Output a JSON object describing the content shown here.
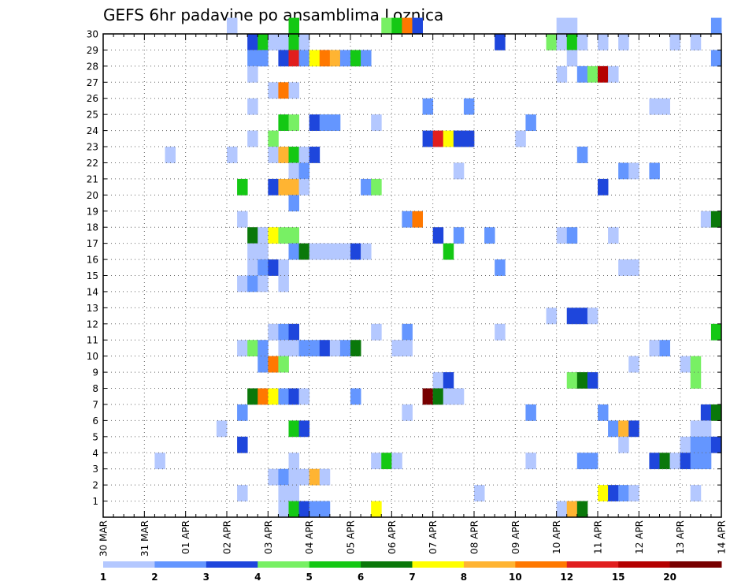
{
  "chart_data": {
    "type": "heatmap",
    "title": "GEFS 6hr padavine po ansamblima Loznica",
    "xlabel": "",
    "ylabel": "",
    "x_tick_labels": [
      "30 MAR",
      "31 MAR",
      "01 APR",
      "02 APR",
      "03 APR",
      "04 APR",
      "05 APR",
      "06 APR",
      "07 APR",
      "08 APR",
      "09 APR",
      "10 APR",
      "11 APR",
      "12 APR",
      "13 APR",
      "14 APR"
    ],
    "x_range_steps": [
      0,
      60
    ],
    "y_tick_labels": [
      "1",
      "2",
      "3",
      "4",
      "5",
      "6",
      "7",
      "8",
      "9",
      "10",
      "11",
      "12",
      "13",
      "14",
      "15",
      "16",
      "17",
      "18",
      "19",
      "20",
      "21",
      "22",
      "23",
      "24",
      "25",
      "26",
      "27",
      "28",
      "29",
      "30"
    ],
    "y_range": [
      0,
      30
    ],
    "grid": true,
    "colorbar": {
      "position": "bottom",
      "labels": [
        "1",
        "2",
        "3",
        "4",
        "5",
        "6",
        "7",
        "8",
        "10",
        "12",
        "15",
        "20"
      ],
      "colors": [
        "#b4c8ff",
        "#6496ff",
        "#1e46dc",
        "#78f064",
        "#14c814",
        "#0a780a",
        "#ffff00",
        "#ffb432",
        "#ff7800",
        "#e11e1e",
        "#b40000",
        "#780000"
      ]
    },
    "cells": [
      [
        12,
        30,
        0
      ],
      [
        18,
        30,
        4
      ],
      [
        27,
        30,
        3
      ],
      [
        28,
        30,
        4
      ],
      [
        29,
        30,
        8
      ],
      [
        30,
        30,
        2
      ],
      [
        44,
        30,
        0
      ],
      [
        45,
        30,
        0
      ],
      [
        59,
        30,
        1
      ],
      [
        14,
        29,
        2
      ],
      [
        15,
        29,
        4
      ],
      [
        16,
        29,
        0
      ],
      [
        17,
        29,
        0
      ],
      [
        18,
        29,
        4
      ],
      [
        19,
        29,
        0
      ],
      [
        38,
        29,
        2
      ],
      [
        43,
        29,
        3
      ],
      [
        44,
        29,
        0
      ],
      [
        45,
        29,
        4
      ],
      [
        46,
        29,
        0
      ],
      [
        48,
        29,
        0
      ],
      [
        50,
        29,
        0
      ],
      [
        55,
        29,
        0
      ],
      [
        57,
        29,
        0
      ],
      [
        14,
        28,
        1
      ],
      [
        15,
        28,
        1
      ],
      [
        17,
        28,
        2
      ],
      [
        18,
        28,
        9
      ],
      [
        19,
        28,
        1
      ],
      [
        20,
        28,
        6
      ],
      [
        21,
        28,
        8
      ],
      [
        22,
        28,
        7
      ],
      [
        23,
        28,
        1
      ],
      [
        24,
        28,
        4
      ],
      [
        25,
        28,
        1
      ],
      [
        45,
        28,
        0
      ],
      [
        59,
        28,
        1
      ],
      [
        14,
        27,
        0
      ],
      [
        44,
        27,
        0
      ],
      [
        46,
        27,
        1
      ],
      [
        47,
        27,
        3
      ],
      [
        48,
        27,
        10
      ],
      [
        49,
        27,
        0
      ],
      [
        16,
        26,
        0
      ],
      [
        17,
        26,
        8
      ],
      [
        18,
        26,
        0
      ],
      [
        14,
        25,
        0
      ],
      [
        31,
        25,
        1
      ],
      [
        35,
        25,
        1
      ],
      [
        53,
        25,
        0
      ],
      [
        54,
        25,
        0
      ],
      [
        17,
        24,
        4
      ],
      [
        18,
        24,
        3
      ],
      [
        20,
        24,
        2
      ],
      [
        21,
        24,
        1
      ],
      [
        22,
        24,
        1
      ],
      [
        26,
        24,
        0
      ],
      [
        41,
        24,
        1
      ],
      [
        14,
        23,
        0
      ],
      [
        16,
        23,
        3
      ],
      [
        31,
        23,
        2
      ],
      [
        32,
        23,
        9
      ],
      [
        33,
        23,
        6
      ],
      [
        34,
        23,
        2
      ],
      [
        35,
        23,
        2
      ],
      [
        40,
        23,
        0
      ],
      [
        6,
        22,
        0
      ],
      [
        12,
        22,
        0
      ],
      [
        16,
        22,
        0
      ],
      [
        17,
        22,
        7
      ],
      [
        18,
        22,
        4
      ],
      [
        19,
        22,
        0
      ],
      [
        20,
        22,
        2
      ],
      [
        46,
        22,
        1
      ],
      [
        18,
        21,
        0
      ],
      [
        19,
        21,
        1
      ],
      [
        34,
        21,
        0
      ],
      [
        50,
        21,
        1
      ],
      [
        51,
        21,
        0
      ],
      [
        53,
        21,
        1
      ],
      [
        13,
        20,
        4
      ],
      [
        16,
        20,
        2
      ],
      [
        17,
        20,
        7
      ],
      [
        18,
        20,
        7
      ],
      [
        19,
        20,
        0
      ],
      [
        25,
        20,
        1
      ],
      [
        26,
        20,
        3
      ],
      [
        48,
        20,
        2
      ],
      [
        18,
        19,
        1
      ],
      [
        13,
        18,
        0
      ],
      [
        29,
        18,
        1
      ],
      [
        30,
        18,
        8
      ],
      [
        58,
        18,
        0
      ],
      [
        59,
        18,
        5
      ],
      [
        14,
        17,
        5
      ],
      [
        15,
        17,
        0
      ],
      [
        16,
        17,
        6
      ],
      [
        17,
        17,
        3
      ],
      [
        18,
        17,
        3
      ],
      [
        32,
        17,
        2
      ],
      [
        34,
        17,
        1
      ],
      [
        37,
        17,
        1
      ],
      [
        44,
        17,
        0
      ],
      [
        45,
        17,
        1
      ],
      [
        49,
        17,
        0
      ],
      [
        14,
        16,
        0
      ],
      [
        15,
        16,
        0
      ],
      [
        18,
        16,
        1
      ],
      [
        19,
        16,
        5
      ],
      [
        20,
        16,
        0
      ],
      [
        21,
        16,
        0
      ],
      [
        22,
        16,
        0
      ],
      [
        23,
        16,
        0
      ],
      [
        24,
        16,
        2
      ],
      [
        25,
        16,
        0
      ],
      [
        33,
        16,
        4
      ],
      [
        14,
        15,
        0
      ],
      [
        15,
        15,
        1
      ],
      [
        16,
        15,
        2
      ],
      [
        17,
        15,
        0
      ],
      [
        38,
        15,
        1
      ],
      [
        50,
        15,
        0
      ],
      [
        51,
        15,
        0
      ],
      [
        13,
        14,
        0
      ],
      [
        14,
        14,
        1
      ],
      [
        15,
        14,
        0
      ],
      [
        17,
        14,
        0
      ],
      [
        43,
        12,
        0
      ],
      [
        45,
        12,
        2
      ],
      [
        46,
        12,
        2
      ],
      [
        47,
        12,
        0
      ],
      [
        16,
        11,
        0
      ],
      [
        17,
        11,
        1
      ],
      [
        18,
        11,
        2
      ],
      [
        26,
        11,
        0
      ],
      [
        29,
        11,
        1
      ],
      [
        38,
        11,
        0
      ],
      [
        59,
        11,
        4
      ],
      [
        13,
        10,
        0
      ],
      [
        14,
        10,
        3
      ],
      [
        15,
        10,
        1
      ],
      [
        17,
        10,
        0
      ],
      [
        18,
        10,
        0
      ],
      [
        19,
        10,
        1
      ],
      [
        20,
        10,
        1
      ],
      [
        21,
        10,
        2
      ],
      [
        22,
        10,
        0
      ],
      [
        23,
        10,
        1
      ],
      [
        24,
        10,
        5
      ],
      [
        28,
        10,
        0
      ],
      [
        29,
        10,
        0
      ],
      [
        53,
        10,
        0
      ],
      [
        54,
        10,
        1
      ],
      [
        15,
        9,
        1
      ],
      [
        16,
        9,
        8
      ],
      [
        17,
        9,
        3
      ],
      [
        51,
        9,
        0
      ],
      [
        56,
        9,
        0
      ],
      [
        57,
        9,
        3
      ],
      [
        32,
        8,
        0
      ],
      [
        33,
        8,
        2
      ],
      [
        45,
        8,
        3
      ],
      [
        46,
        8,
        5
      ],
      [
        47,
        8,
        2
      ],
      [
        57,
        8,
        3
      ],
      [
        14,
        7,
        5
      ],
      [
        15,
        7,
        8
      ],
      [
        16,
        7,
        6
      ],
      [
        17,
        7,
        1
      ],
      [
        18,
        7,
        2
      ],
      [
        19,
        7,
        0
      ],
      [
        24,
        7,
        1
      ],
      [
        31,
        7,
        11
      ],
      [
        32,
        7,
        5
      ],
      [
        33,
        7,
        0
      ],
      [
        34,
        7,
        0
      ],
      [
        13,
        6,
        1
      ],
      [
        29,
        6,
        0
      ],
      [
        41,
        6,
        1
      ],
      [
        48,
        6,
        1
      ],
      [
        58,
        6,
        2
      ],
      [
        59,
        6,
        5
      ],
      [
        11,
        5,
        0
      ],
      [
        18,
        5,
        4
      ],
      [
        19,
        5,
        2
      ],
      [
        49,
        5,
        1
      ],
      [
        50,
        5,
        7
      ],
      [
        51,
        5,
        2
      ],
      [
        57,
        5,
        0
      ],
      [
        58,
        5,
        0
      ],
      [
        13,
        4,
        2
      ],
      [
        50,
        4,
        0
      ],
      [
        56,
        4,
        0
      ],
      [
        57,
        4,
        1
      ],
      [
        58,
        4,
        1
      ],
      [
        59,
        4,
        2
      ],
      [
        5,
        3,
        0
      ],
      [
        18,
        3,
        0
      ],
      [
        26,
        3,
        0
      ],
      [
        27,
        3,
        4
      ],
      [
        28,
        3,
        0
      ],
      [
        41,
        3,
        0
      ],
      [
        46,
        3,
        1
      ],
      [
        47,
        3,
        1
      ],
      [
        53,
        3,
        2
      ],
      [
        54,
        3,
        5
      ],
      [
        55,
        3,
        0
      ],
      [
        56,
        3,
        2
      ],
      [
        57,
        3,
        1
      ],
      [
        58,
        3,
        1
      ],
      [
        16,
        2,
        0
      ],
      [
        17,
        2,
        1
      ],
      [
        18,
        2,
        0
      ],
      [
        19,
        2,
        0
      ],
      [
        20,
        2,
        7
      ],
      [
        21,
        2,
        0
      ],
      [
        13,
        1,
        0
      ],
      [
        17,
        1,
        0
      ],
      [
        18,
        1,
        0
      ],
      [
        36,
        1,
        0
      ],
      [
        48,
        1,
        6
      ],
      [
        49,
        1,
        2
      ],
      [
        50,
        1,
        1
      ],
      [
        51,
        1,
        0
      ],
      [
        57,
        1,
        0
      ],
      [
        17,
        0,
        0
      ],
      [
        18,
        0,
        4
      ],
      [
        19,
        0,
        2
      ],
      [
        20,
        0,
        1
      ],
      [
        21,
        0,
        1
      ],
      [
        26,
        0,
        6
      ],
      [
        44,
        0,
        0
      ],
      [
        45,
        0,
        7
      ],
      [
        46,
        0,
        5
      ]
    ]
  }
}
